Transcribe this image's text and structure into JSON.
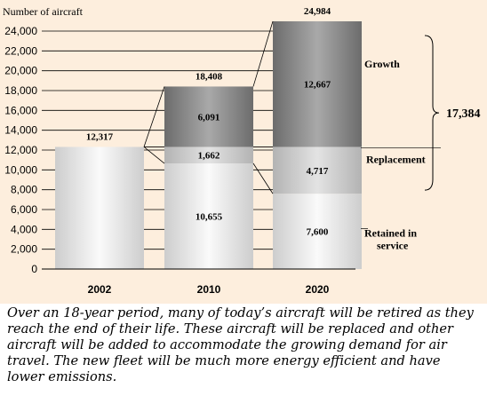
{
  "chart_data": {
    "type": "bar",
    "stacked": true,
    "ylabel": "Number of aircraft",
    "ylim": [
      0,
      24000
    ],
    "yticks": [
      "0",
      "2,000",
      "4,000",
      "6,000",
      "8,000",
      "10,000",
      "12,000",
      "14,000",
      "16,000",
      "18,000",
      "20,000",
      "22,000",
      "24,000"
    ],
    "ytick_values": [
      0,
      2000,
      4000,
      6000,
      8000,
      10000,
      12000,
      14000,
      16000,
      18000,
      20000,
      22000,
      24000
    ],
    "grid": true,
    "categories": [
      "2002",
      "2010",
      "2020"
    ],
    "totals": [
      12317,
      18408,
      24984
    ],
    "total_labels": [
      "12,317",
      "18,408",
      "24,984"
    ],
    "series": [
      {
        "name": "Retained in service",
        "values": [
          12317,
          10655,
          7600
        ],
        "labels": [
          "",
          "10,655",
          "7,600"
        ]
      },
      {
        "name": "Replacement",
        "values": [
          0,
          1662,
          4717
        ],
        "labels": [
          "",
          "1,662",
          "4,717"
        ]
      },
      {
        "name": "Growth",
        "values": [
          0,
          6091,
          12667
        ],
        "labels": [
          "",
          "6,091",
          "12,667"
        ]
      }
    ],
    "brace_label": "17,384",
    "colors": {
      "background": "#fdeedd",
      "retained_light": "#fafafa",
      "retained_dark": "#cdcdcd",
      "replacement_light": "#e3e3e3",
      "replacement_dark": "#b3b3b3",
      "growth_light": "#a9a9a9",
      "growth_dark": "#6c6c6c"
    }
  },
  "caption": "Over an 18-year period, many of today’s aircraft will be retired as they reach the end of their life. These aircraft will be replaced and other aircraft will be added to accommodate the growing demand for air travel. The new fleet will be much more energy efficient and have lower emissions."
}
